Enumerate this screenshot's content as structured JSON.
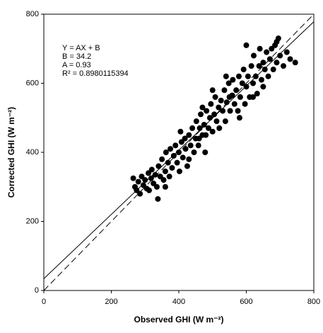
{
  "chart_data": {
    "type": "scatter",
    "xlabel": "Observed GHI (W m⁻²)",
    "ylabel": "Corrected GHI (W m⁻²)",
    "annotations": [
      "Y = AX + B",
      "B = 34.2",
      "A = 0.93",
      "R² = 0.8980115394"
    ],
    "regression": {
      "slope": 0.93,
      "intercept": 34.2
    },
    "identity": {
      "slope": 1,
      "intercept": 0
    },
    "xlim": [
      0,
      800
    ],
    "ylim": [
      0,
      800
    ],
    "xticks": [
      0,
      200,
      400,
      600,
      800
    ],
    "yticks": [
      0,
      200,
      400,
      600,
      800
    ],
    "x": [
      270,
      265,
      275,
      280,
      285,
      290,
      295,
      300,
      305,
      310,
      312,
      318,
      320,
      325,
      330,
      335,
      338,
      340,
      345,
      350,
      355,
      360,
      362,
      368,
      372,
      375,
      380,
      385,
      390,
      395,
      400,
      402,
      408,
      412,
      418,
      420,
      425,
      430,
      435,
      440,
      445,
      450,
      452,
      458,
      462,
      465,
      470,
      475,
      478,
      482,
      488,
      492,
      495,
      500,
      505,
      508,
      512,
      518,
      520,
      525,
      530,
      535,
      538,
      542,
      548,
      552,
      558,
      560,
      565,
      570,
      575,
      578,
      582,
      588,
      592,
      596,
      600,
      605,
      610,
      615,
      620,
      622,
      628,
      632,
      638,
      640,
      645,
      650,
      655,
      660,
      665,
      670,
      675,
      680,
      685,
      690,
      695,
      700,
      710,
      720,
      730,
      745,
      600,
      550,
      480,
      430,
      500,
      460,
      580,
      620,
      540,
      360,
      470,
      405,
      650,
      690
    ],
    "series": [
      {
        "color": "#000000",
        "values": [
          300,
          325,
          290,
          315,
          280,
          330,
          305,
          320,
          295,
          340,
          290,
          325,
          350,
          310,
          335,
          300,
          265,
          360,
          330,
          380,
          320,
          345,
          400,
          370,
          330,
          410,
          355,
          390,
          420,
          370,
          400,
          345,
          430,
          385,
          440,
          410,
          360,
          450,
          420,
          470,
          400,
          440,
          490,
          420,
          470,
          510,
          450,
          480,
          400,
          520,
          470,
          500,
          540,
          460,
          510,
          560,
          490,
          530,
          470,
          550,
          520,
          580,
          490,
          545,
          600,
          520,
          565,
          610,
          540,
          580,
          520,
          620,
          560,
          600,
          640,
          540,
          590,
          620,
          560,
          650,
          600,
          680,
          620,
          570,
          650,
          700,
          610,
          660,
          640,
          690,
          620,
          670,
          700,
          640,
          710,
          660,
          730,
          680,
          650,
          690,
          670,
          660,
          710,
          560,
          450,
          380,
          580,
          440,
          500,
          560,
          620,
          300,
          530,
          460,
          590,
          720
        ]
      }
    ]
  }
}
